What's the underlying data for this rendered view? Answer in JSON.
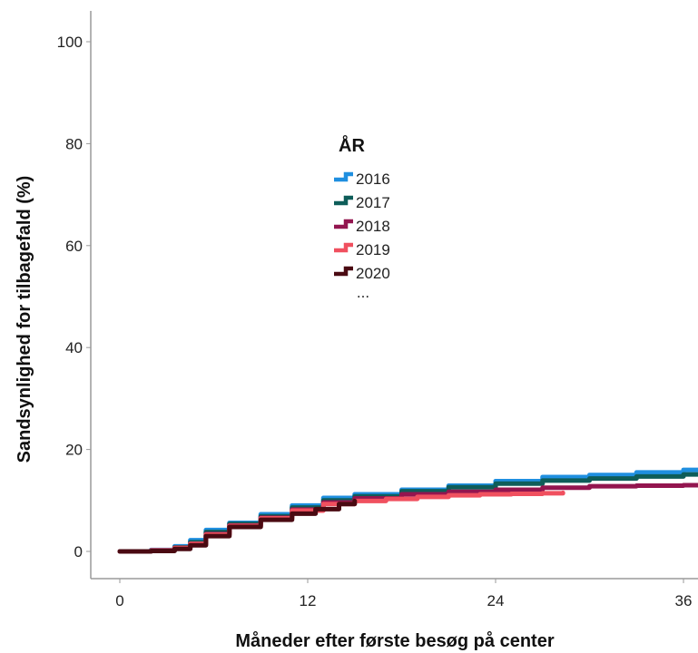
{
  "chart_data": {
    "type": "line",
    "xlabel": "Måneder efter første besøg på center",
    "ylabel": "Sandsynlighed for tilbagefald (%)",
    "xlim": [
      -2,
      38
    ],
    "ylim": [
      -5,
      104
    ],
    "xticks": [
      0,
      12,
      24,
      36
    ],
    "yticks": [
      0,
      20,
      40,
      60,
      80,
      100
    ],
    "grid": false,
    "legend": {
      "title": "ÅR",
      "placement": "center-top",
      "more": "..."
    },
    "series": [
      {
        "name": "2016",
        "color": "#1f8fe0",
        "x": [
          0,
          2,
          3.5,
          4.5,
          5.5,
          7,
          9,
          11,
          13,
          15,
          18,
          21,
          24,
          27,
          30,
          33,
          36,
          38
        ],
        "y": [
          0,
          0.3,
          1,
          2.2,
          4.2,
          5.6,
          7.3,
          9,
          10.5,
          11.2,
          12.1,
          12.9,
          13.8,
          14.6,
          15,
          15.5,
          16,
          16.3
        ]
      },
      {
        "name": "2017",
        "color": "#0e5d59",
        "x": [
          0,
          2,
          3.5,
          4.5,
          5.5,
          7,
          9,
          11,
          13,
          15,
          18,
          21,
          24,
          27,
          30,
          33,
          36,
          38
        ],
        "y": [
          0,
          0.2,
          0.8,
          1.8,
          3.8,
          5.4,
          6.9,
          8.6,
          10,
          10.8,
          11.8,
          12.6,
          13.3,
          13.9,
          14.3,
          14.7,
          15.1,
          15.5
        ]
      },
      {
        "name": "2018",
        "color": "#93154f",
        "x": [
          0,
          2,
          3.5,
          4.5,
          5.5,
          7,
          9,
          11,
          13,
          15,
          18,
          21,
          24,
          27,
          30,
          33,
          36,
          38
        ],
        "y": [
          0,
          0.2,
          0.7,
          1.5,
          3.4,
          5.1,
          6.6,
          8.2,
          9.6,
          10.4,
          11.2,
          11.7,
          12.1,
          12.5,
          12.8,
          12.9,
          13,
          13.1
        ]
      },
      {
        "name": "2019",
        "color": "#f0505f",
        "x": [
          0,
          2,
          3.5,
          4.5,
          5.5,
          7,
          9,
          11,
          13,
          15,
          17,
          19,
          21,
          23,
          25,
          27,
          28.3
        ],
        "y": [
          0,
          0.2,
          0.7,
          1.5,
          3.3,
          5,
          6.5,
          8,
          9.3,
          9.9,
          10.3,
          10.7,
          11,
          11.2,
          11.3,
          11.4,
          11.5
        ]
      },
      {
        "name": "2020",
        "color": "#4a0a12",
        "x": [
          0,
          2,
          3.5,
          4.5,
          5.5,
          7,
          9,
          11,
          12.5,
          14,
          15
        ],
        "y": [
          0,
          0.1,
          0.5,
          1.2,
          3,
          4.8,
          6.2,
          7.4,
          8.3,
          9.3,
          9.9
        ]
      }
    ]
  }
}
